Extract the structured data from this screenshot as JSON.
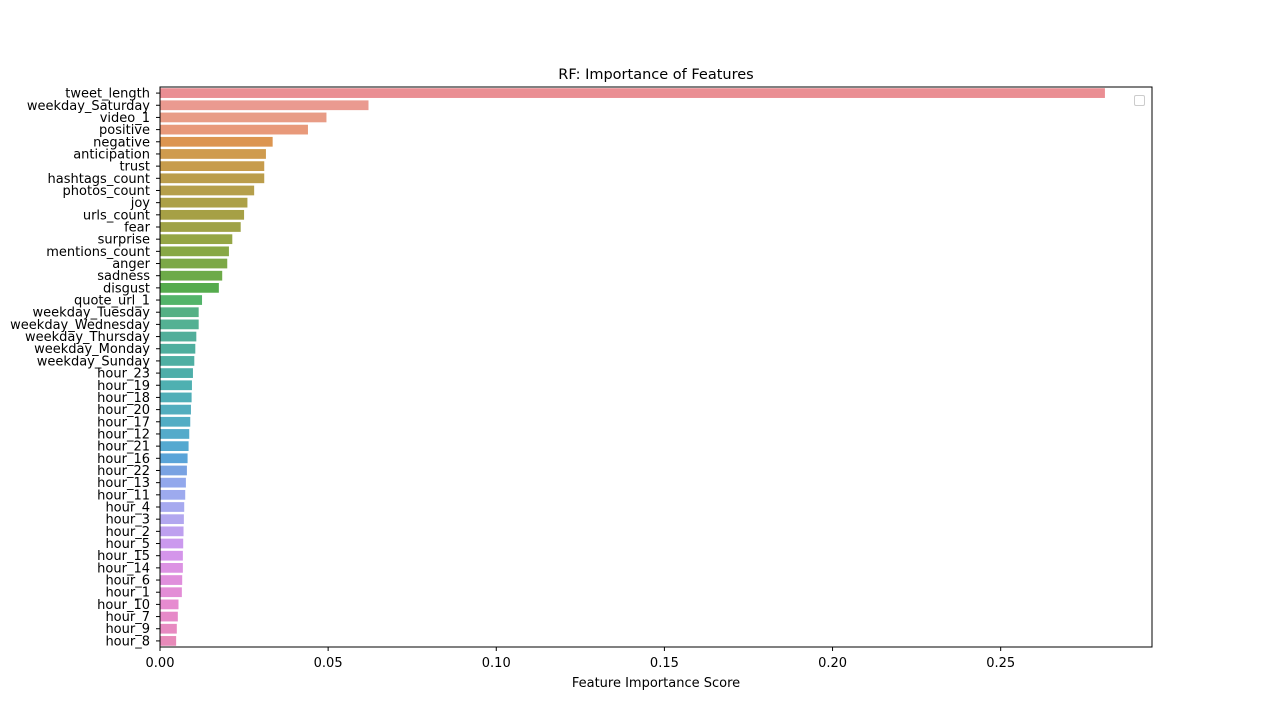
{
  "chart_data": {
    "type": "bar",
    "orientation": "horizontal",
    "title": "RF: Importance of Features",
    "xlabel": "Feature Importance Score",
    "ylabel": "",
    "xlim": [
      0,
      0.295
    ],
    "x_ticks": [
      {
        "value": 0.0,
        "label": "0.00"
      },
      {
        "value": 0.05,
        "label": "0.05"
      },
      {
        "value": 0.1,
        "label": "0.10"
      },
      {
        "value": 0.15,
        "label": "0.15"
      },
      {
        "value": 0.2,
        "label": "0.20"
      },
      {
        "value": 0.25,
        "label": "0.25"
      }
    ],
    "grid": false,
    "legend": {
      "placement": "top-right",
      "entries": []
    },
    "categories": [
      "tweet_length",
      "weekday_Saturday",
      "video_1",
      "positive",
      "negative",
      "anticipation",
      "trust",
      "hashtags_count",
      "photos_count",
      "joy",
      "urls_count",
      "fear",
      "surprise",
      "mentions_count",
      "anger",
      "sadness",
      "disgust",
      "quote_url_1",
      "weekday_Tuesday",
      "weekday_Wednesday",
      "weekday_Thursday",
      "weekday_Monday",
      "weekday_Sunday",
      "hour_23",
      "hour_19",
      "hour_18",
      "hour_20",
      "hour_17",
      "hour_12",
      "hour_21",
      "hour_16",
      "hour_22",
      "hour_13",
      "hour_11",
      "hour_4",
      "hour_3",
      "hour_2",
      "hour_5",
      "hour_15",
      "hour_14",
      "hour_6",
      "hour_1",
      "hour_10",
      "hour_7",
      "hour_9",
      "hour_8"
    ],
    "values": [
      0.281,
      0.062,
      0.0495,
      0.044,
      0.0335,
      0.0315,
      0.031,
      0.031,
      0.028,
      0.026,
      0.025,
      0.024,
      0.0215,
      0.0205,
      0.02,
      0.0185,
      0.0175,
      0.0125,
      0.0115,
      0.0115,
      0.0108,
      0.0105,
      0.0102,
      0.0098,
      0.0095,
      0.0094,
      0.0092,
      0.009,
      0.0087,
      0.0085,
      0.0082,
      0.008,
      0.0077,
      0.0075,
      0.0072,
      0.0071,
      0.007,
      0.0069,
      0.0068,
      0.0068,
      0.0066,
      0.0065,
      0.0055,
      0.0053,
      0.005,
      0.0048
    ],
    "colors": [
      "#ea8e93",
      "#ea9a90",
      "#e89c86",
      "#e8997a",
      "#dc9550",
      "#cf9b4e",
      "#c79c4c",
      "#bb9d4b",
      "#b59f4b",
      "#aca047",
      "#a6a045",
      "#9fa247",
      "#95a645",
      "#88a845",
      "#7ca846",
      "#6daa48",
      "#55ab4d",
      "#53b46a",
      "#54b084",
      "#54b193",
      "#52ae9a",
      "#4fae9e",
      "#4fafa3",
      "#4eaea9",
      "#4fb0b1",
      "#50aeb7",
      "#52adbe",
      "#53adc4",
      "#54abca",
      "#55a9d0",
      "#5aa4d8",
      "#79a2e2",
      "#92a8ec",
      "#9daaee",
      "#a6a9ef",
      "#b2a7ef",
      "#bea0ef",
      "#cb99ee",
      "#d495ea",
      "#dc93e3",
      "#e08fdc",
      "#e38dd6",
      "#e68bd0",
      "#e68ac8",
      "#e78ac1",
      "#e78ab9"
    ]
  }
}
